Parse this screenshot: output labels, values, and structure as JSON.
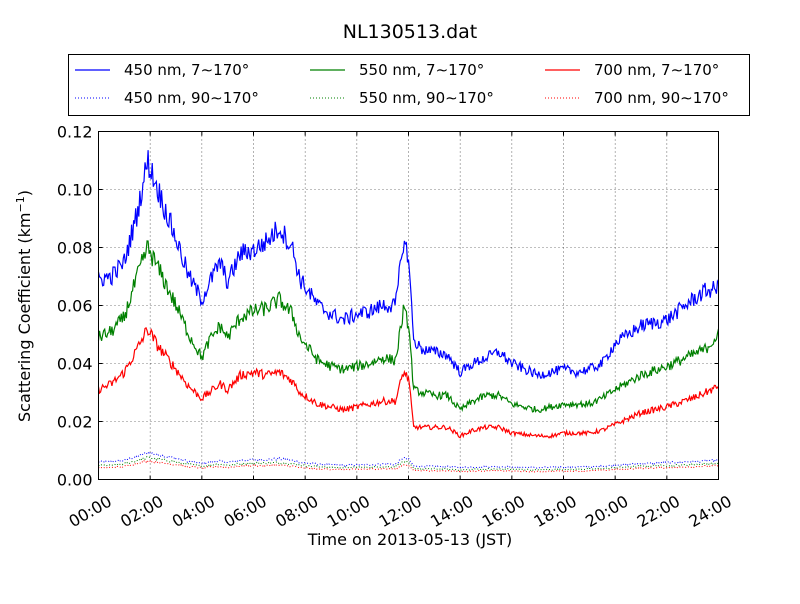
{
  "chart_data": {
    "type": "line",
    "title": "NL130513.dat",
    "xlabel": "Time on 2013-05-13 (JST)",
    "ylabel_main": "Scattering Coefficient (km",
    "ylabel_sup": "−1",
    "ylabel_end": ")",
    "xlim": [
      "00:00",
      "24:00"
    ],
    "ylim": [
      0,
      0.12
    ],
    "grid": true,
    "legend_position": "top, above plot",
    "x_ticks": [
      "00:00",
      "02:00",
      "04:00",
      "06:00",
      "08:00",
      "10:00",
      "12:00",
      "14:00",
      "16:00",
      "18:00",
      "20:00",
      "22:00",
      "24:00"
    ],
    "y_ticks": [
      "0.00",
      "0.02",
      "0.04",
      "0.06",
      "0.08",
      "0.10",
      "0.12"
    ],
    "x_hours": [
      0,
      0.5,
      1,
      1.5,
      1.9,
      2.3,
      3,
      3.5,
      4,
      4.3,
      4.7,
      5,
      5.5,
      6,
      6.5,
      7,
      7.5,
      7.8,
      8.5,
      9,
      9.5,
      10,
      10.5,
      11,
      11.5,
      11.8,
      12,
      12.2,
      12.5,
      13,
      13.5,
      14,
      14.5,
      15,
      15.5,
      16,
      17,
      17.5,
      18,
      18.5,
      19,
      19.5,
      20,
      21,
      22,
      23,
      23.5,
      24
    ],
    "series": [
      {
        "name": "450 nm, 7∼170°",
        "color": "#0000ff",
        "style": "solid",
        "values": [
          0.069,
          0.07,
          0.075,
          0.092,
          0.11,
          0.1,
          0.083,
          0.07,
          0.062,
          0.068,
          0.075,
          0.068,
          0.078,
          0.079,
          0.082,
          0.087,
          0.08,
          0.069,
          0.06,
          0.057,
          0.055,
          0.057,
          0.058,
          0.06,
          0.06,
          0.082,
          0.077,
          0.048,
          0.045,
          0.044,
          0.043,
          0.037,
          0.04,
          0.042,
          0.044,
          0.04,
          0.036,
          0.037,
          0.038,
          0.037,
          0.038,
          0.04,
          0.047,
          0.053,
          0.055,
          0.062,
          0.065,
          0.066
        ]
      },
      {
        "name": "550 nm, 7∼170°",
        "color": "#008000",
        "style": "solid",
        "values": [
          0.049,
          0.051,
          0.056,
          0.07,
          0.08,
          0.073,
          0.06,
          0.05,
          0.042,
          0.048,
          0.053,
          0.049,
          0.056,
          0.058,
          0.059,
          0.062,
          0.057,
          0.049,
          0.041,
          0.039,
          0.038,
          0.039,
          0.04,
          0.042,
          0.041,
          0.058,
          0.054,
          0.031,
          0.03,
          0.029,
          0.029,
          0.024,
          0.027,
          0.029,
          0.029,
          0.026,
          0.024,
          0.025,
          0.026,
          0.026,
          0.026,
          0.028,
          0.031,
          0.036,
          0.039,
          0.043,
          0.045,
          0.05
        ]
      },
      {
        "name": "700 nm, 7∼170°",
        "color": "#ff0000",
        "style": "solid",
        "values": [
          0.031,
          0.033,
          0.037,
          0.045,
          0.052,
          0.046,
          0.038,
          0.032,
          0.028,
          0.03,
          0.033,
          0.031,
          0.036,
          0.037,
          0.036,
          0.037,
          0.034,
          0.03,
          0.026,
          0.025,
          0.024,
          0.025,
          0.026,
          0.027,
          0.027,
          0.037,
          0.035,
          0.018,
          0.018,
          0.018,
          0.018,
          0.015,
          0.017,
          0.018,
          0.018,
          0.016,
          0.015,
          0.015,
          0.016,
          0.016,
          0.016,
          0.017,
          0.019,
          0.023,
          0.025,
          0.028,
          0.03,
          0.032
        ]
      },
      {
        "name": "450 nm, 90∼170°",
        "color": "#0000ff",
        "style": "dotted",
        "values": [
          0.006,
          0.0061,
          0.0066,
          0.008,
          0.0093,
          0.0085,
          0.0072,
          0.0062,
          0.0056,
          0.006,
          0.0064,
          0.0059,
          0.0066,
          0.0068,
          0.0069,
          0.0071,
          0.0066,
          0.0059,
          0.0053,
          0.005,
          0.0049,
          0.005,
          0.0051,
          0.0053,
          0.0052,
          0.0075,
          0.007,
          0.0047,
          0.0046,
          0.0045,
          0.0044,
          0.0041,
          0.0043,
          0.0044,
          0.0045,
          0.0043,
          0.0041,
          0.0042,
          0.0043,
          0.0043,
          0.0044,
          0.0046,
          0.005,
          0.0055,
          0.0058,
          0.0062,
          0.0064,
          0.0066
        ]
      },
      {
        "name": "550 nm, 90∼170°",
        "color": "#008000",
        "style": "dotted",
        "values": [
          0.0048,
          0.0049,
          0.0054,
          0.0066,
          0.0076,
          0.007,
          0.006,
          0.0052,
          0.0047,
          0.005,
          0.0053,
          0.0049,
          0.0055,
          0.0056,
          0.0057,
          0.0058,
          0.0054,
          0.0049,
          0.0044,
          0.0042,
          0.0041,
          0.0042,
          0.0043,
          0.0044,
          0.0044,
          0.0062,
          0.0058,
          0.0038,
          0.0037,
          0.0037,
          0.0036,
          0.0033,
          0.0035,
          0.0036,
          0.0036,
          0.0035,
          0.0033,
          0.0034,
          0.0035,
          0.0035,
          0.0036,
          0.0038,
          0.0041,
          0.0046,
          0.0048,
          0.0051,
          0.0053,
          0.0055
        ]
      },
      {
        "name": "700 nm, 90∼170°",
        "color": "#ff0000",
        "style": "dotted",
        "values": [
          0.004,
          0.0041,
          0.0045,
          0.0056,
          0.0064,
          0.0059,
          0.0051,
          0.0044,
          0.004,
          0.0042,
          0.0045,
          0.0042,
          0.0047,
          0.0048,
          0.0048,
          0.0049,
          0.0046,
          0.0041,
          0.0037,
          0.0035,
          0.0034,
          0.0035,
          0.0036,
          0.0037,
          0.0037,
          0.0052,
          0.0049,
          0.0031,
          0.0031,
          0.003,
          0.003,
          0.0027,
          0.0029,
          0.003,
          0.003,
          0.0029,
          0.0027,
          0.0028,
          0.0029,
          0.0029,
          0.003,
          0.0032,
          0.0034,
          0.0039,
          0.0041,
          0.0044,
          0.0046,
          0.0048
        ]
      }
    ],
    "legend_order": [
      0,
      1,
      2,
      3,
      4,
      5
    ]
  }
}
